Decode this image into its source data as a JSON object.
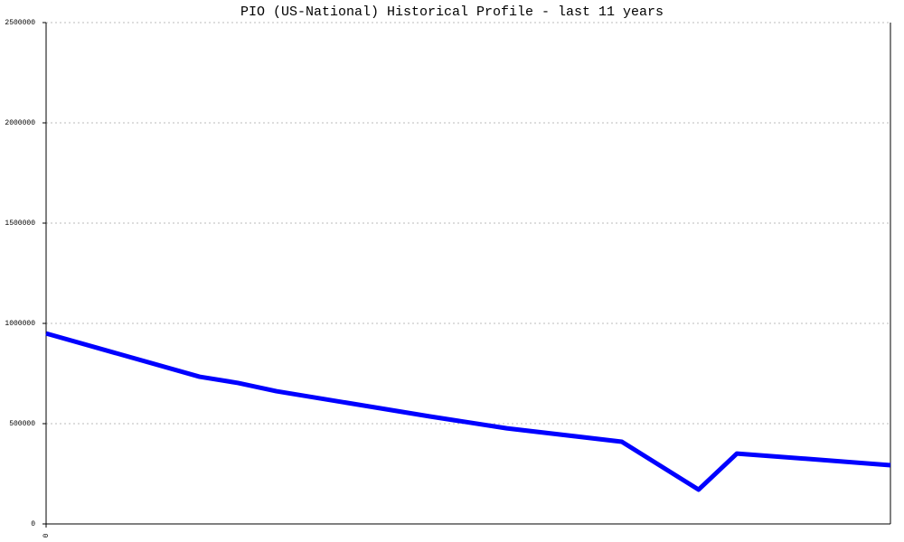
{
  "chart_data": {
    "type": "line",
    "title": "PIO (US-National) Historical Profile - last 11 years",
    "x": [
      0,
      2,
      2.5,
      3,
      5,
      6,
      7.5,
      8.5,
      9,
      11
    ],
    "series": [
      {
        "color": "#0000ff",
        "values": [
          950000,
          734000,
          703000,
          662000,
          536000,
          477000,
          410000,
          171000,
          351000,
          293000
        ]
      }
    ],
    "xlim": [
      0,
      11
    ],
    "xticks": [
      0
    ],
    "ylim": [
      0,
      2500000
    ],
    "yticks": [
      0,
      500000,
      1000000,
      1500000,
      2000000,
      2500000
    ],
    "grid": true
  }
}
